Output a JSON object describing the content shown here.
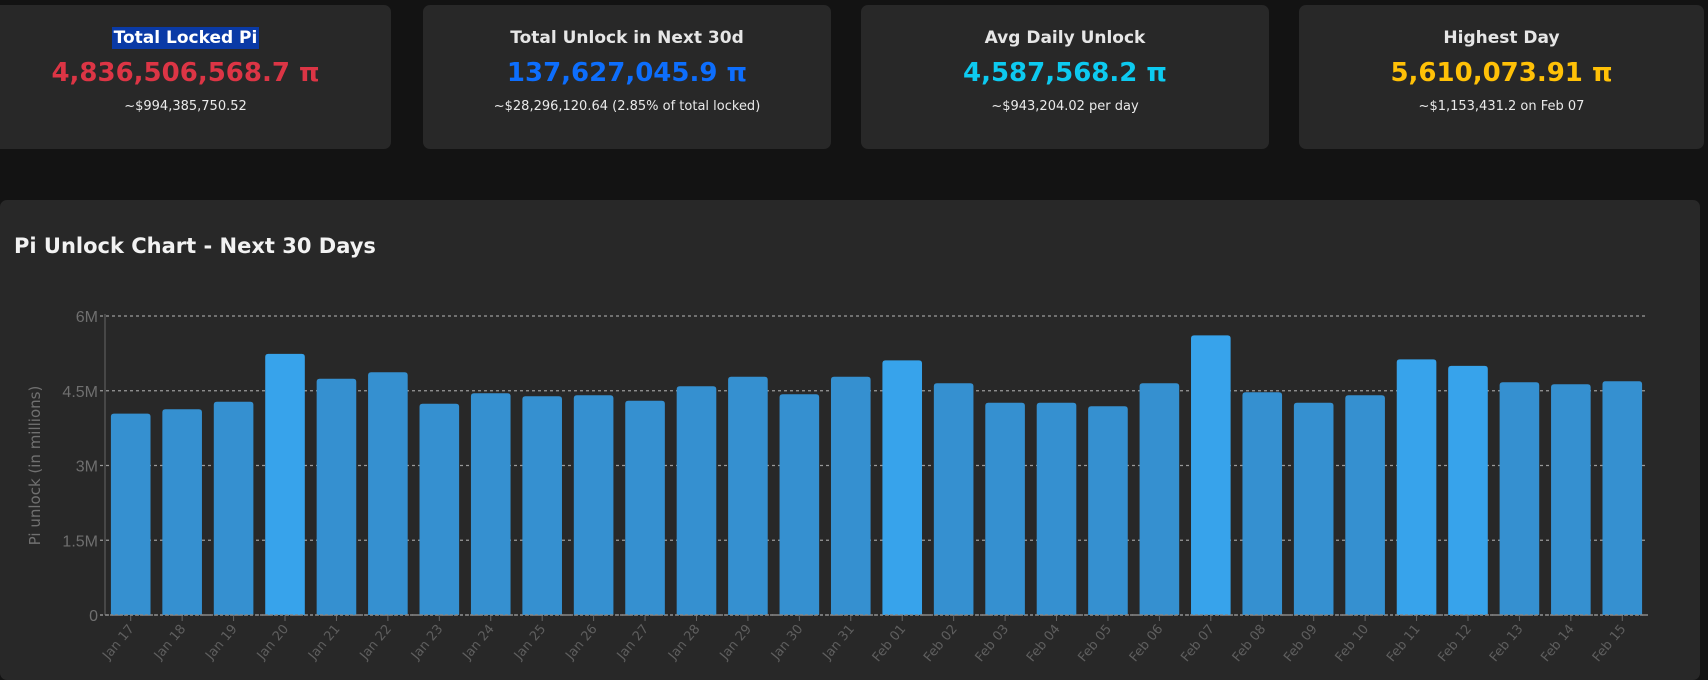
{
  "cards": [
    {
      "label": "Total Locked Pi",
      "value": "4,836,506,568.7 π",
      "sub": "~$994,385,750.52",
      "color": "#dc3545"
    },
    {
      "label": "Total Unlock in Next 30d",
      "value": "137,627,045.9 π",
      "sub": "~$28,296,120.64 (2.85% of total locked)",
      "color": "#0d6efd"
    },
    {
      "label": "Avg Daily Unlock",
      "value": "4,587,568.2 π",
      "sub": "~$943,204.02 per day",
      "color": "#0dcaf0"
    },
    {
      "label": "Highest Day",
      "value": "5,610,073.91 π",
      "sub": "~$1,153,431.2 on Feb 07",
      "color": "#ffc107"
    }
  ],
  "chart_data": {
    "type": "bar",
    "title": "Pi Unlock Chart - Next 30 Days",
    "xlabel": "",
    "ylabel": "Pi unlock (in millions)",
    "ylim": [
      0,
      6000000
    ],
    "yticks": [
      {
        "v": 0,
        "label": "0"
      },
      {
        "v": 1500000,
        "label": "1.5M"
      },
      {
        "v": 3000000,
        "label": "3M"
      },
      {
        "v": 4500000,
        "label": "4.5M"
      },
      {
        "v": 6000000,
        "label": "6M"
      }
    ],
    "grid": true,
    "categories": [
      "Jan 17",
      "Jan 18",
      "Jan 19",
      "Jan 20",
      "Jan 21",
      "Jan 22",
      "Jan 23",
      "Jan 24",
      "Jan 25",
      "Jan 26",
      "Jan 27",
      "Jan 28",
      "Jan 29",
      "Jan 30",
      "Jan 31",
      "Feb 01",
      "Feb 02",
      "Feb 03",
      "Feb 04",
      "Feb 05",
      "Feb 06",
      "Feb 07",
      "Feb 08",
      "Feb 09",
      "Feb 10",
      "Feb 11",
      "Feb 12",
      "Feb 13",
      "Feb 14",
      "Feb 15"
    ],
    "values": [
      4040000,
      4130000,
      4280000,
      5240000,
      4740000,
      4870000,
      4240000,
      4450000,
      4390000,
      4410000,
      4300000,
      4590000,
      4780000,
      4430000,
      4780000,
      5110000,
      4650000,
      4260000,
      4260000,
      4190000,
      4650000,
      5610074,
      4470000,
      4260000,
      4410000,
      5130000,
      5000000,
      4670000,
      4630000,
      4690000
    ],
    "bar_colors": {
      "low": "#3590d0",
      "high": "#37a3eb"
    }
  }
}
